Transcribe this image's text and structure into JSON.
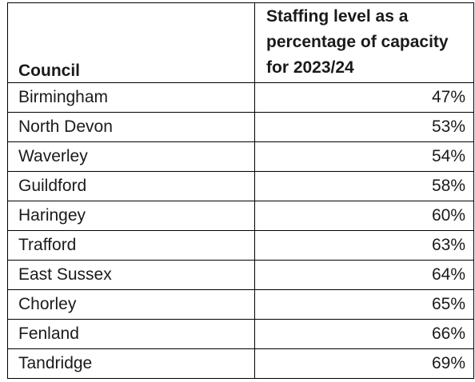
{
  "table": {
    "headers": {
      "council": "Council",
      "staffing": "Staffing level as a percentage of capacity for 2023/24"
    },
    "rows": [
      {
        "council": "Birmingham",
        "value": "47%"
      },
      {
        "council": "North Devon",
        "value": "53%"
      },
      {
        "council": "Waverley",
        "value": "54%"
      },
      {
        "council": "Guildford",
        "value": "58%"
      },
      {
        "council": "Haringey",
        "value": "60%"
      },
      {
        "council": "Trafford",
        "value": "63%"
      },
      {
        "council": "East Sussex",
        "value": "64%"
      },
      {
        "council": "Chorley",
        "value": "65%"
      },
      {
        "council": "Fenland",
        "value": "66%"
      },
      {
        "council": "Tandridge",
        "value": "69%"
      }
    ]
  }
}
